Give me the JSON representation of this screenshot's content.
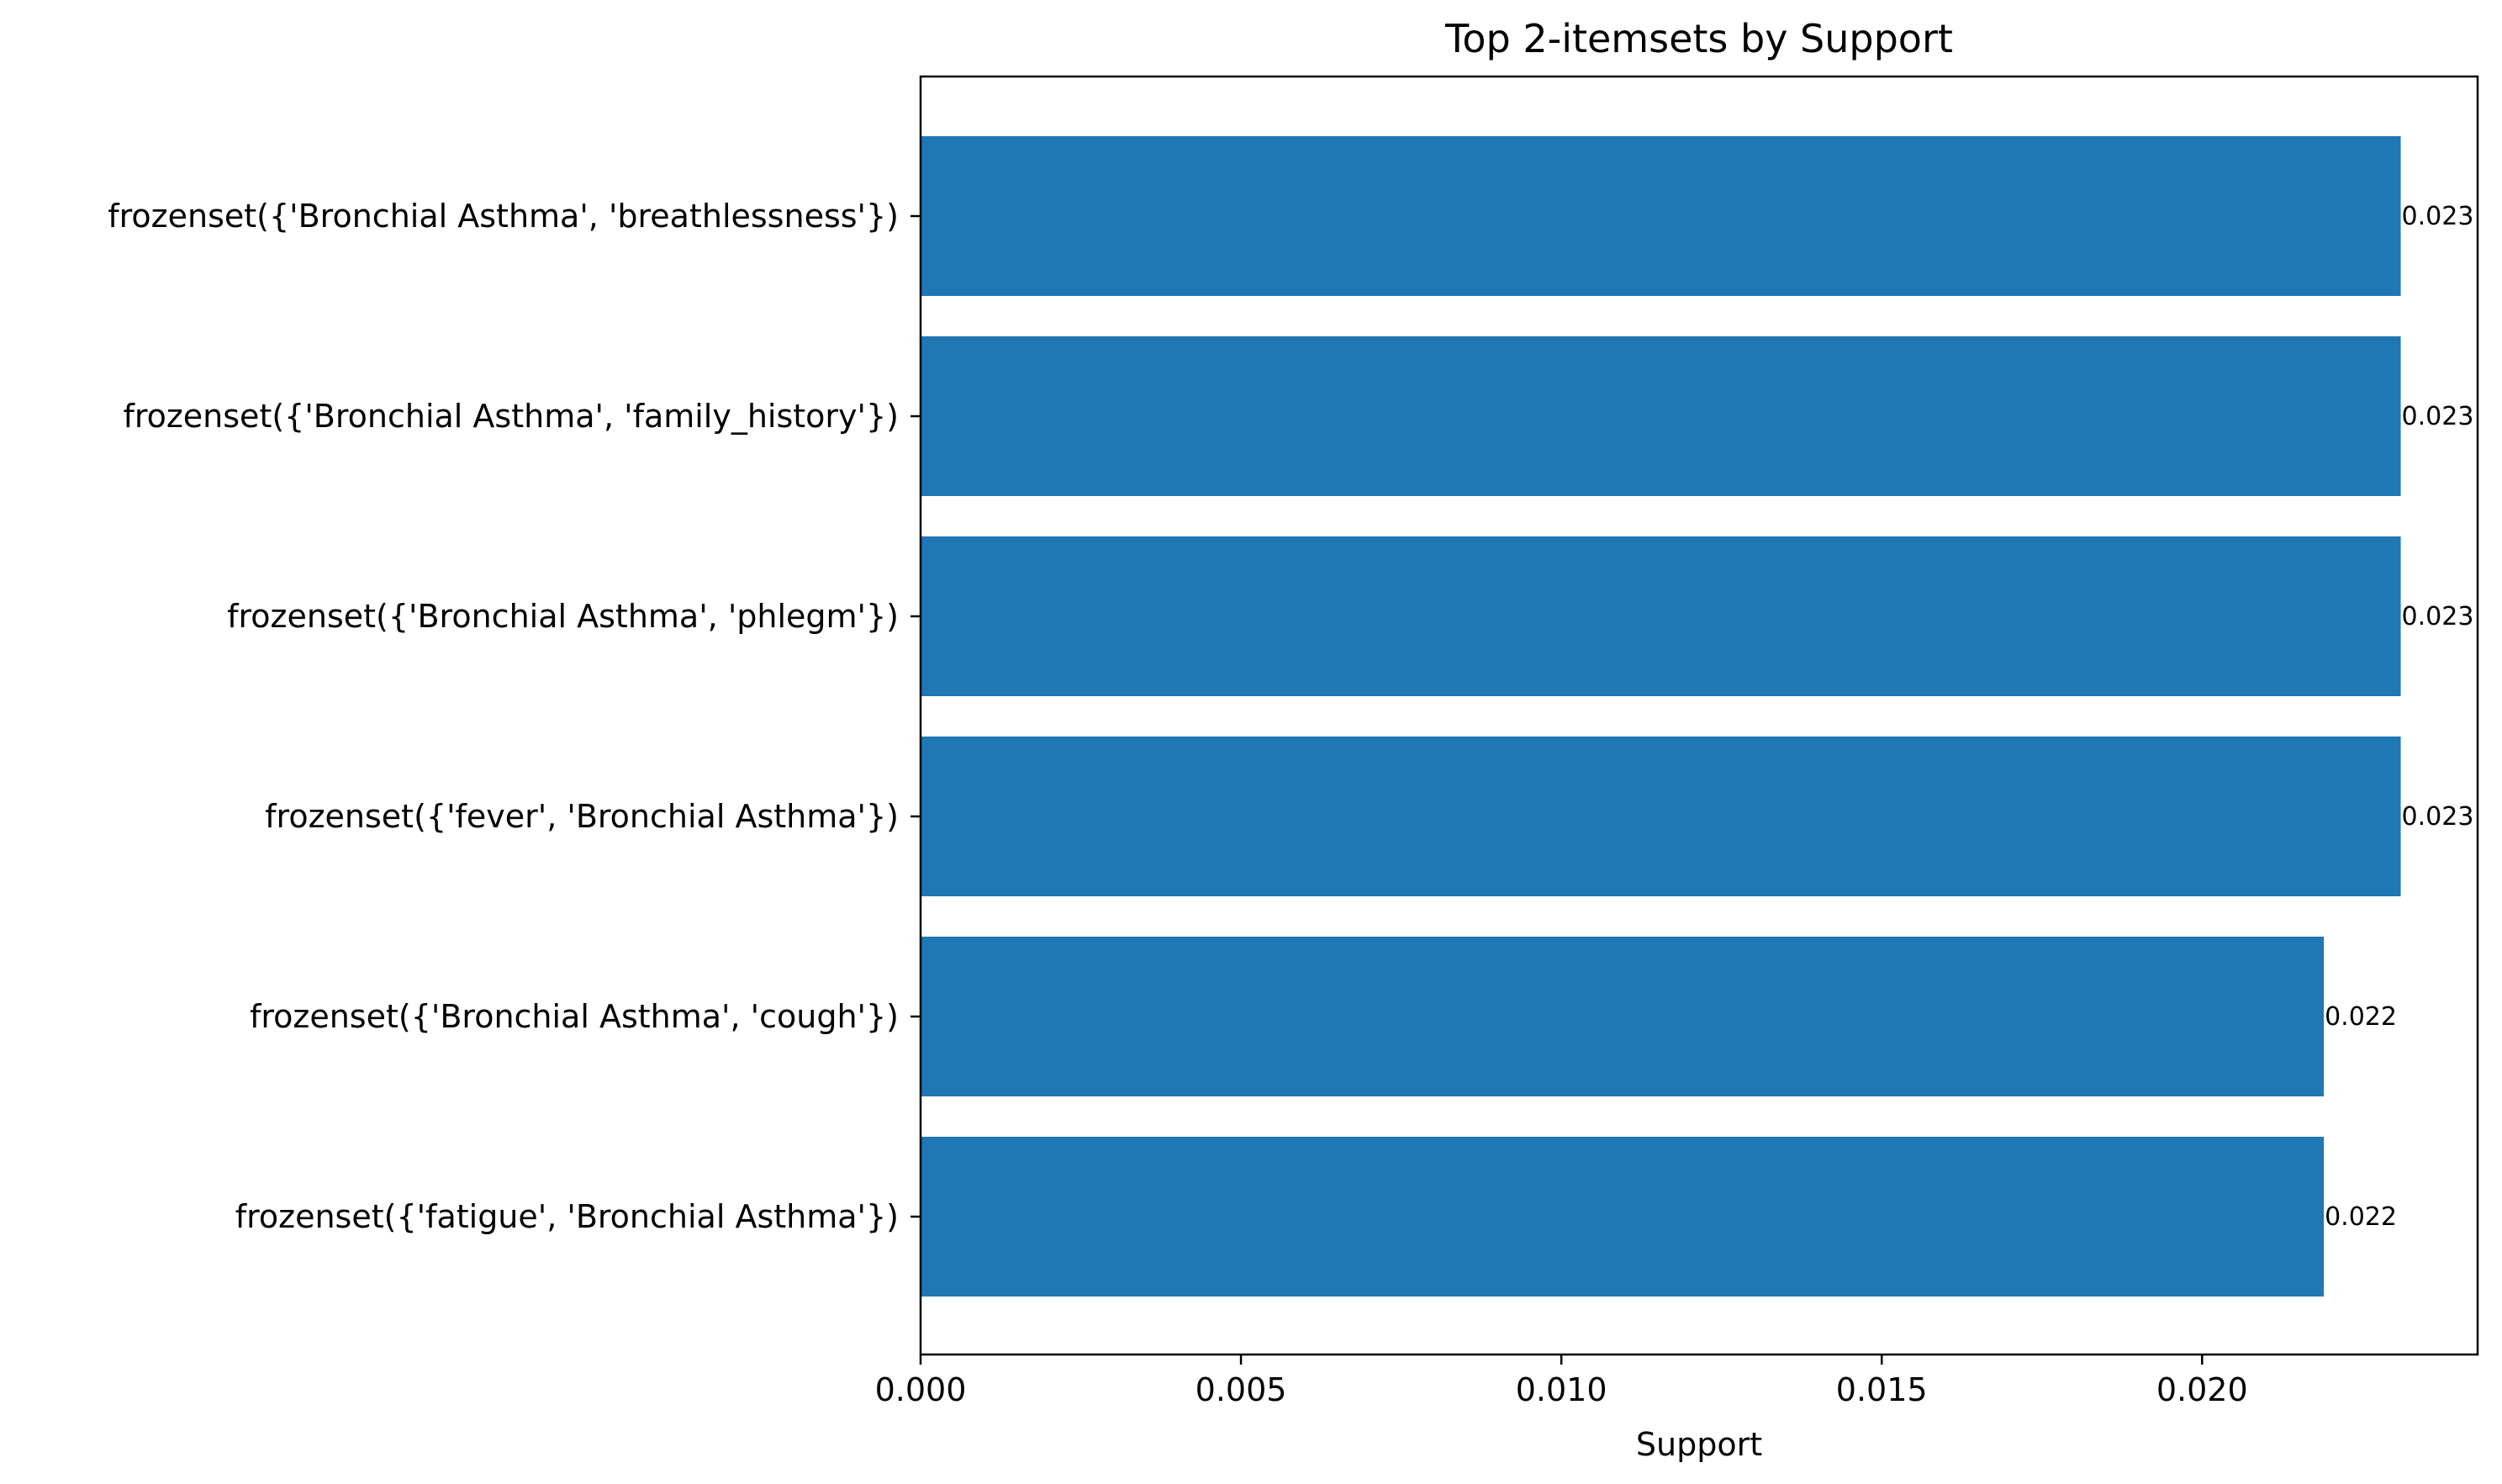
{
  "chart_data": {
    "type": "bar",
    "orientation": "horizontal",
    "title": "Top 2-itemsets by Support",
    "xlabel": "Support",
    "ylabel": "",
    "categories": [
      "frozenset({'Bronchial Asthma', 'breathlessness'})",
      "frozenset({'Bronchial Asthma', 'family_history'})",
      "frozenset({'Bronchial Asthma', 'phlegm'})",
      "frozenset({'fever', 'Bronchial Asthma'})",
      "frozenset({'Bronchial Asthma', 'cough'})",
      "frozenset({'fatigue', 'Bronchial Asthma'})"
    ],
    "values": [
      0.0231,
      0.0231,
      0.0231,
      0.0231,
      0.0219,
      0.0219
    ],
    "value_labels": [
      "0.023",
      "0.023",
      "0.023",
      "0.023",
      "0.022",
      "0.022"
    ],
    "xlim": [
      0,
      0.0243
    ],
    "xticks": [
      0.0,
      0.005,
      0.01,
      0.015,
      0.02
    ],
    "xtick_labels": [
      "0.000",
      "0.005",
      "0.010",
      "0.015",
      "0.020"
    ],
    "bar_color": "#1f77b4",
    "grid": false,
    "legend": "none"
  }
}
